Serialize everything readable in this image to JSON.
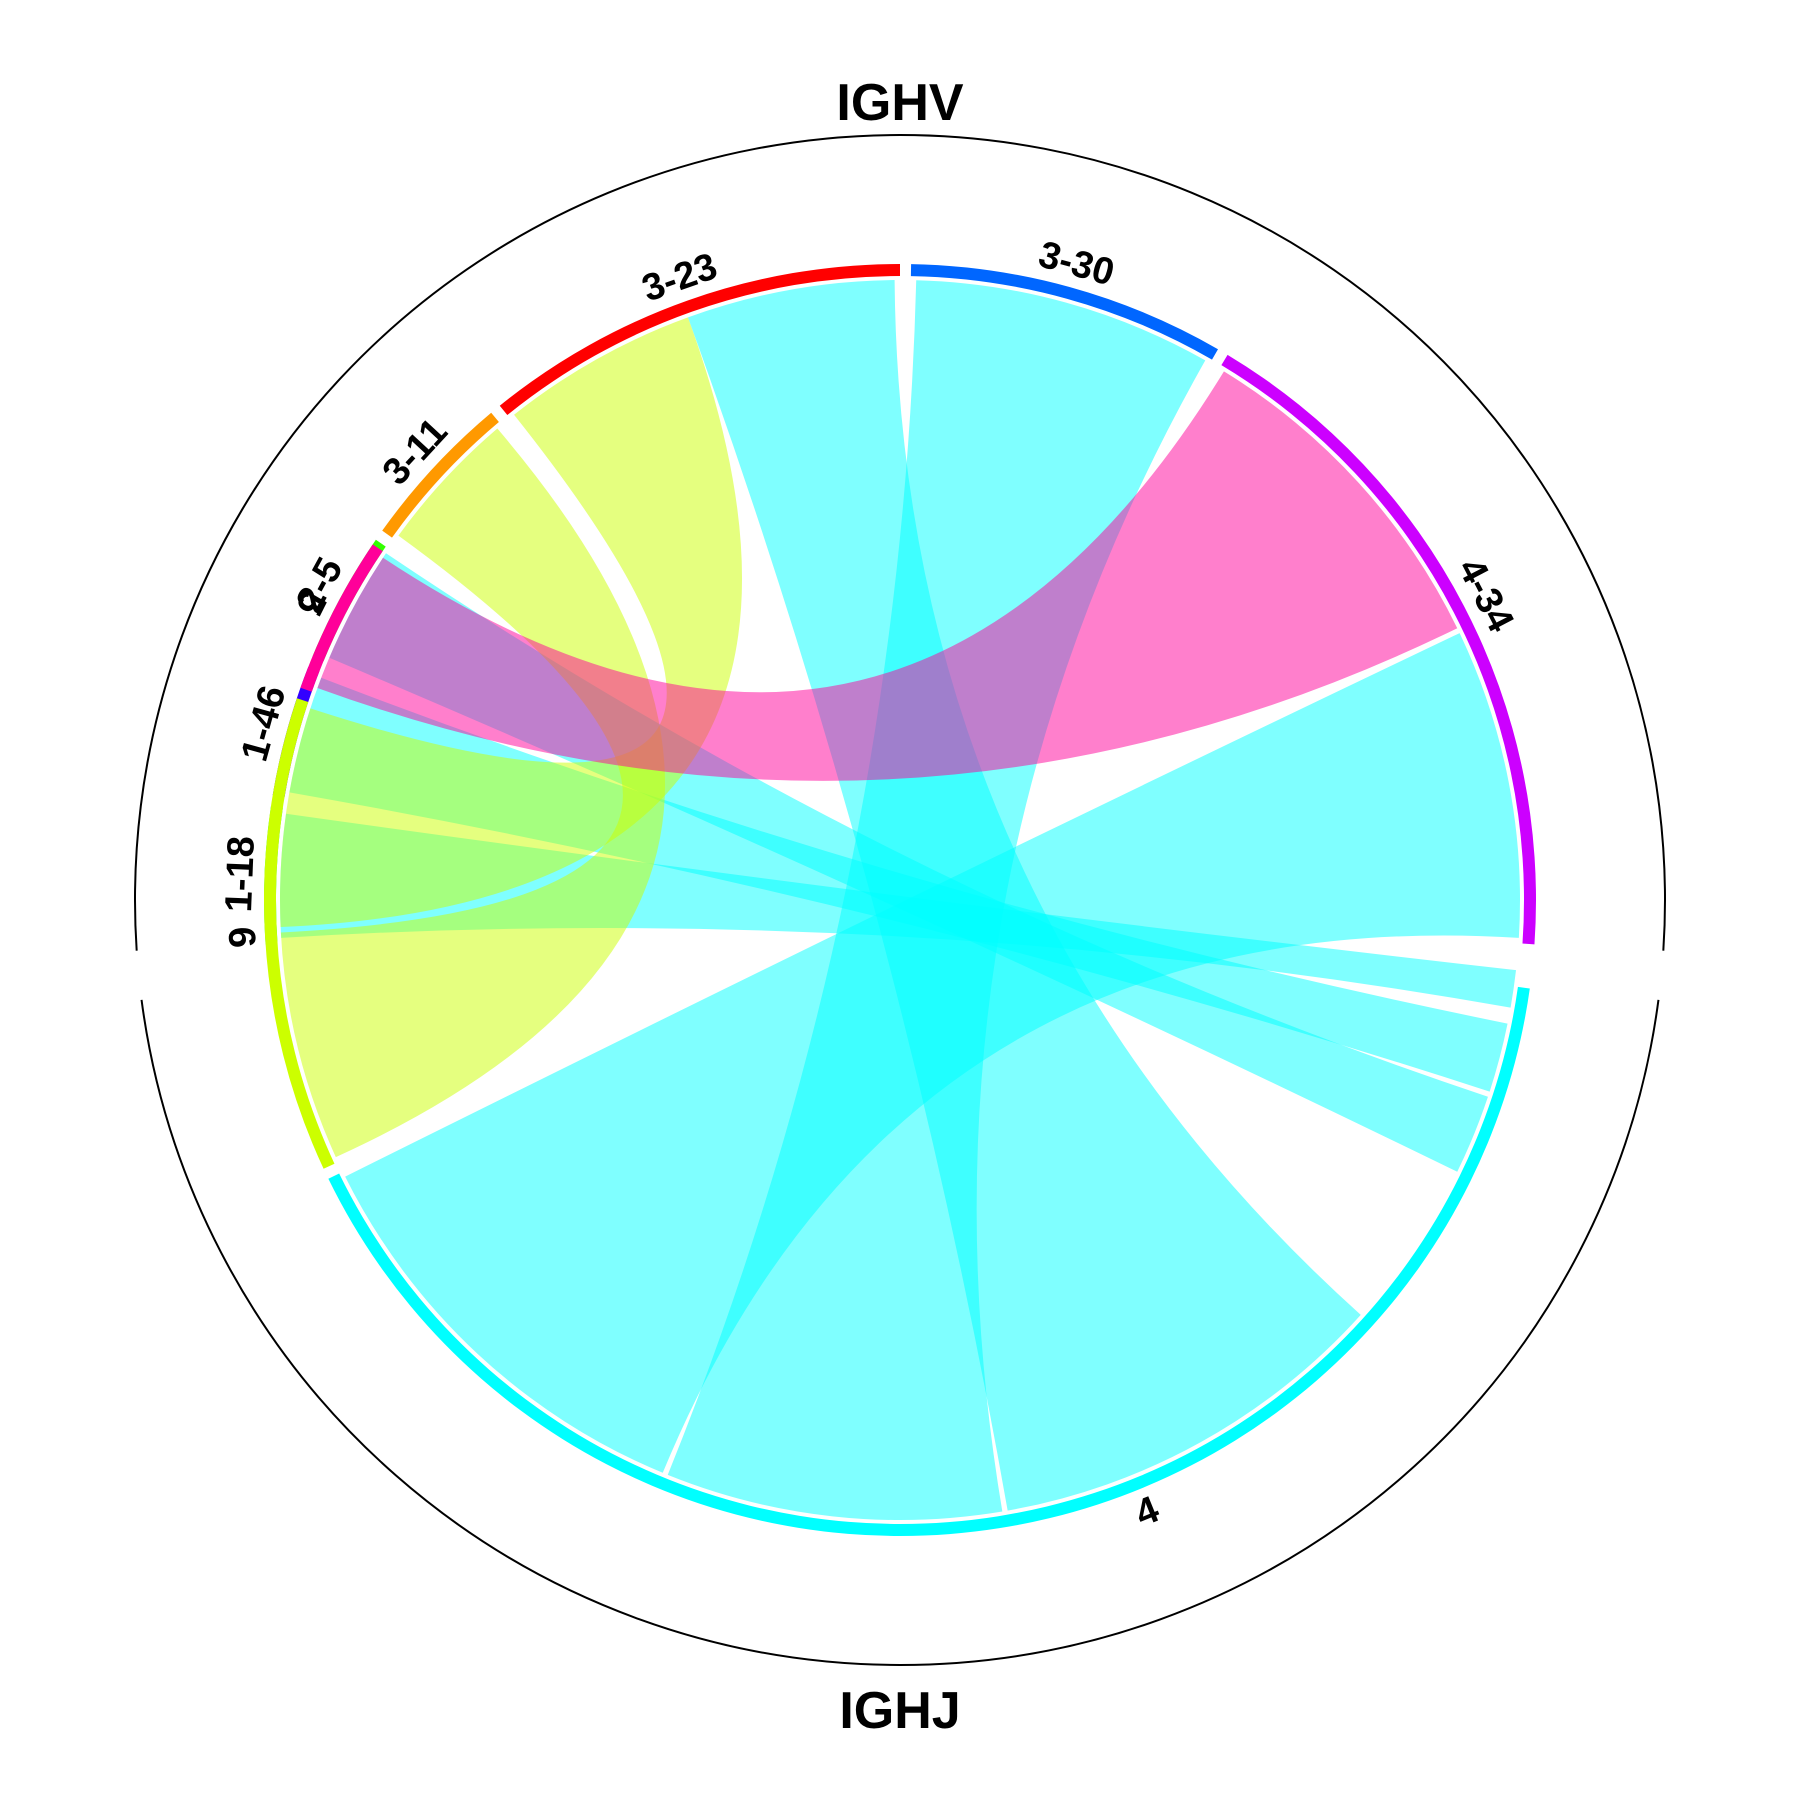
{
  "chart_data": {
    "type": "chord",
    "groups": [
      {
        "name": "IGHV",
        "side": "top"
      },
      {
        "name": "IGHJ",
        "side": "bottom"
      }
    ],
    "sectors": [
      {
        "name": "1-18",
        "group": "IGHV",
        "color": "#00FF66"
      },
      {
        "name": "1-46",
        "group": "IGHV",
        "color": "#3300FF"
      },
      {
        "name": "2-5",
        "group": "IGHV",
        "color": "#33FF00"
      },
      {
        "name": "3-11",
        "group": "IGHV",
        "color": "#FF9900"
      },
      {
        "name": "3-23",
        "group": "IGHV",
        "color": "#FF0000"
      },
      {
        "name": "3-30",
        "group": "IGHV",
        "color": "#0066FF"
      },
      {
        "name": "4-34",
        "group": "IGHV",
        "color": "#CC00FF"
      },
      {
        "name": "4",
        "group": "IGHJ",
        "color": "#00FFFF"
      },
      {
        "name": "6",
        "group": "IGHJ",
        "color": "#CCFF00"
      },
      {
        "name": "5",
        "group": "IGHJ",
        "color": "#FF0099"
      }
    ],
    "links": [
      {
        "from": "1-18",
        "to": "4",
        "value": 1,
        "color": "#00FFFF"
      },
      {
        "from": "1-46",
        "to": "4",
        "value": 1,
        "color": "#00FFFF"
      },
      {
        "from": "2-5",
        "to": "4",
        "value": 1,
        "color": "#00FFFF"
      },
      {
        "from": "3-11",
        "to": "6",
        "value": 1,
        "color": "#CCFF00"
      },
      {
        "from": "3-23",
        "to": "6",
        "value": 1,
        "color": "#CCFF00"
      },
      {
        "from": "3-23",
        "to": "4",
        "value": 1,
        "color": "#00FFFF"
      },
      {
        "from": "3-30",
        "to": "4",
        "value": 2,
        "color": "#00FFFF"
      },
      {
        "from": "4-34",
        "to": "5",
        "value": 1,
        "color": "#FF0099"
      },
      {
        "from": "4-34",
        "to": "4",
        "value": 1,
        "color": "#00FFFF"
      }
    ]
  }
}
